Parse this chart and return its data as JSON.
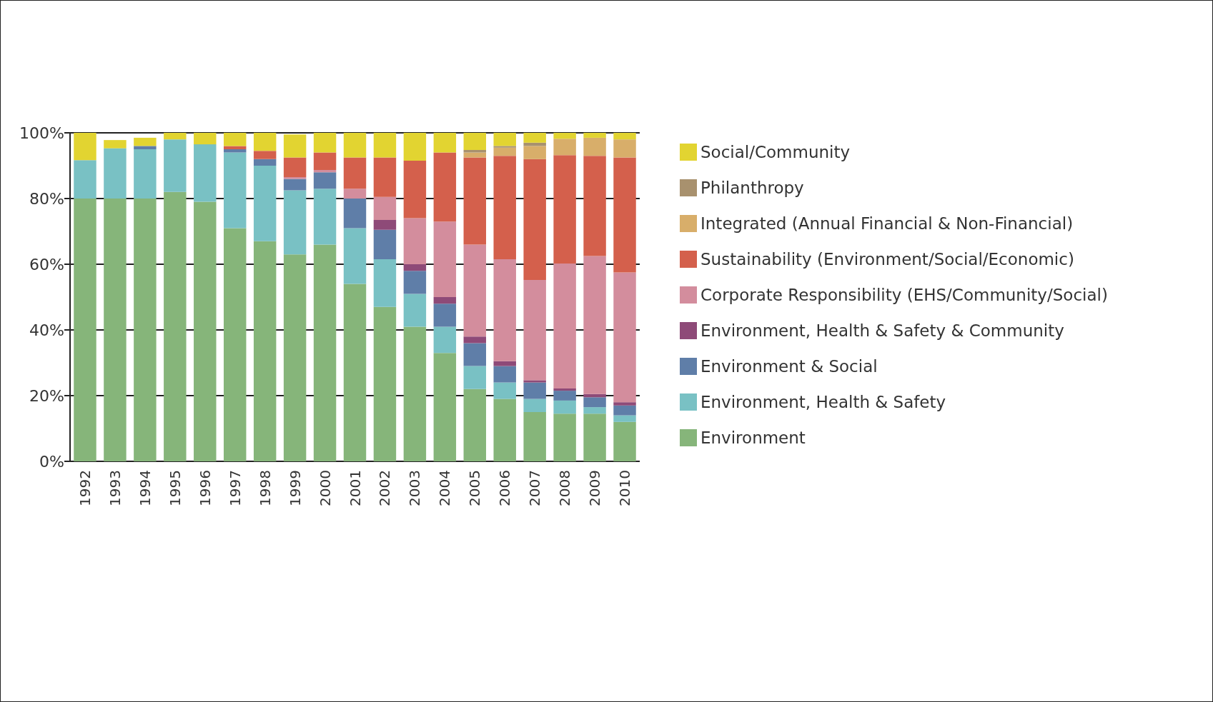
{
  "chart_data": {
    "type": "bar",
    "stacked": true,
    "legend": "right",
    "grid": "y",
    "categories": [
      "1992",
      "1993",
      "1994",
      "1995",
      "1996",
      "1997",
      "1998",
      "1999",
      "2000",
      "2001",
      "2002",
      "2003",
      "2004",
      "2005",
      "2006",
      "2007",
      "2008",
      "2009",
      "2010"
    ],
    "ylim": [
      0,
      100
    ],
    "yticks": [
      {
        "value": 0,
        "label": "0%"
      },
      {
        "value": 20,
        "label": "20%"
      },
      {
        "value": 40,
        "label": "40%"
      },
      {
        "value": 60,
        "label": "60%"
      },
      {
        "value": 80,
        "label": "80%"
      },
      {
        "value": 100,
        "label": "100%"
      }
    ],
    "series": [
      {
        "name": "Environment",
        "color": "#86b57a",
        "values": [
          80,
          80,
          80,
          82,
          79,
          71,
          67,
          63,
          66,
          54,
          47,
          41,
          33,
          22,
          19,
          15,
          14.5,
          14.5,
          12
        ]
      },
      {
        "name": "Environment, Health & Safety",
        "color": "#79c1c4",
        "values": [
          11.7,
          15.3,
          15,
          16,
          17.5,
          23,
          23,
          19.5,
          17,
          17,
          14.5,
          10,
          8,
          7,
          5,
          4,
          4,
          2,
          2
        ]
      },
      {
        "name": "Environment & Social",
        "color": "#5f7ea8",
        "values": [
          null,
          null,
          1,
          null,
          null,
          1,
          2,
          3.5,
          5,
          9,
          9,
          7,
          7,
          7,
          5,
          5,
          3,
          3,
          3
        ]
      },
      {
        "name": "Environment, Health & Safety & Community",
        "color": "#8e4a78",
        "values": [
          null,
          null,
          null,
          null,
          null,
          null,
          null,
          null,
          null,
          null,
          3,
          2,
          2,
          2,
          1.5,
          0.7,
          0.7,
          1,
          1
        ]
      },
      {
        "name": "Corporate Responsibility (EHS/Community/Social)",
        "color": "#d38d9d",
        "values": [
          null,
          null,
          null,
          null,
          null,
          null,
          null,
          0.5,
          0.7,
          3,
          7,
          14,
          23,
          28,
          31,
          30.5,
          38,
          42,
          39.5
        ]
      },
      {
        "name": "Sustainability (Environment/Social/Economic)",
        "color": "#d4604c",
        "values": [
          null,
          null,
          null,
          null,
          null,
          1,
          2.5,
          6,
          5.3,
          9.5,
          12,
          17.5,
          21,
          26.5,
          31.5,
          36.8,
          33,
          30.5,
          35
        ]
      },
      {
        "name": "Integrated (Annual Financial & Non-Financial)",
        "color": "#d8ae6a",
        "values": [
          null,
          null,
          null,
          null,
          null,
          null,
          null,
          null,
          null,
          null,
          null,
          null,
          null,
          1.5,
          2.5,
          4,
          5,
          5.5,
          5.5
        ]
      },
      {
        "name": "Philanthropy",
        "color": "#a8916e",
        "values": [
          null,
          null,
          null,
          null,
          null,
          null,
          null,
          null,
          null,
          null,
          null,
          null,
          null,
          0.8,
          0.5,
          1,
          null,
          null,
          null
        ]
      },
      {
        "name": "Social/Community",
        "color": "#e2d431",
        "values": [
          8.3,
          2.5,
          2.5,
          2,
          3.5,
          4,
          5.5,
          7,
          6,
          7.5,
          7.5,
          8.5,
          6,
          5.2,
          4,
          3,
          1.8,
          1.5,
          2
        ]
      }
    ]
  }
}
